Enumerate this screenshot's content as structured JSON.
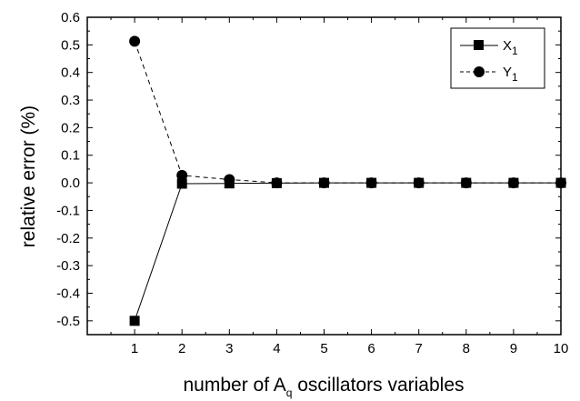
{
  "chart_data": {
    "type": "line",
    "title": "",
    "xlabel": {
      "prefix": "number of A",
      "sub": "q",
      "suffix": " oscillators variables"
    },
    "ylabel": "relative error (%)",
    "xlim": [
      0,
      10
    ],
    "ylim": [
      -0.55,
      0.6
    ],
    "x_ticks": [
      1,
      2,
      3,
      4,
      5,
      6,
      7,
      8,
      9,
      10
    ],
    "y_ticks": [
      -0.5,
      -0.4,
      -0.3,
      -0.2,
      -0.1,
      0.0,
      0.1,
      0.2,
      0.3,
      0.4,
      0.5,
      0.6
    ],
    "y_tick_labels": [
      "-0.5",
      "-0.4",
      "-0.3",
      "-0.2",
      "-0.1",
      "0.0",
      "0.1",
      "0.2",
      "0.3",
      "0.4",
      "0.5",
      "0.6"
    ],
    "grid": false,
    "legend_position": "top-right",
    "x": [
      1,
      2,
      3,
      4,
      5,
      6,
      7,
      8,
      9,
      10
    ],
    "series": [
      {
        "name": "X",
        "name_sub": "1",
        "marker": "square",
        "line": "solid",
        "color": "#000000",
        "values": [
          -0.5,
          -0.003,
          -0.002,
          -0.001,
          0.0,
          0.0,
          0.0,
          0.0,
          0.0,
          0.0
        ]
      },
      {
        "name": "Y",
        "name_sub": "1",
        "marker": "circle",
        "line": "dashed",
        "color": "#000000",
        "values": [
          0.513,
          0.027,
          0.012,
          0.0,
          0.0,
          0.0,
          0.0,
          0.0,
          0.0,
          0.0
        ]
      }
    ]
  }
}
